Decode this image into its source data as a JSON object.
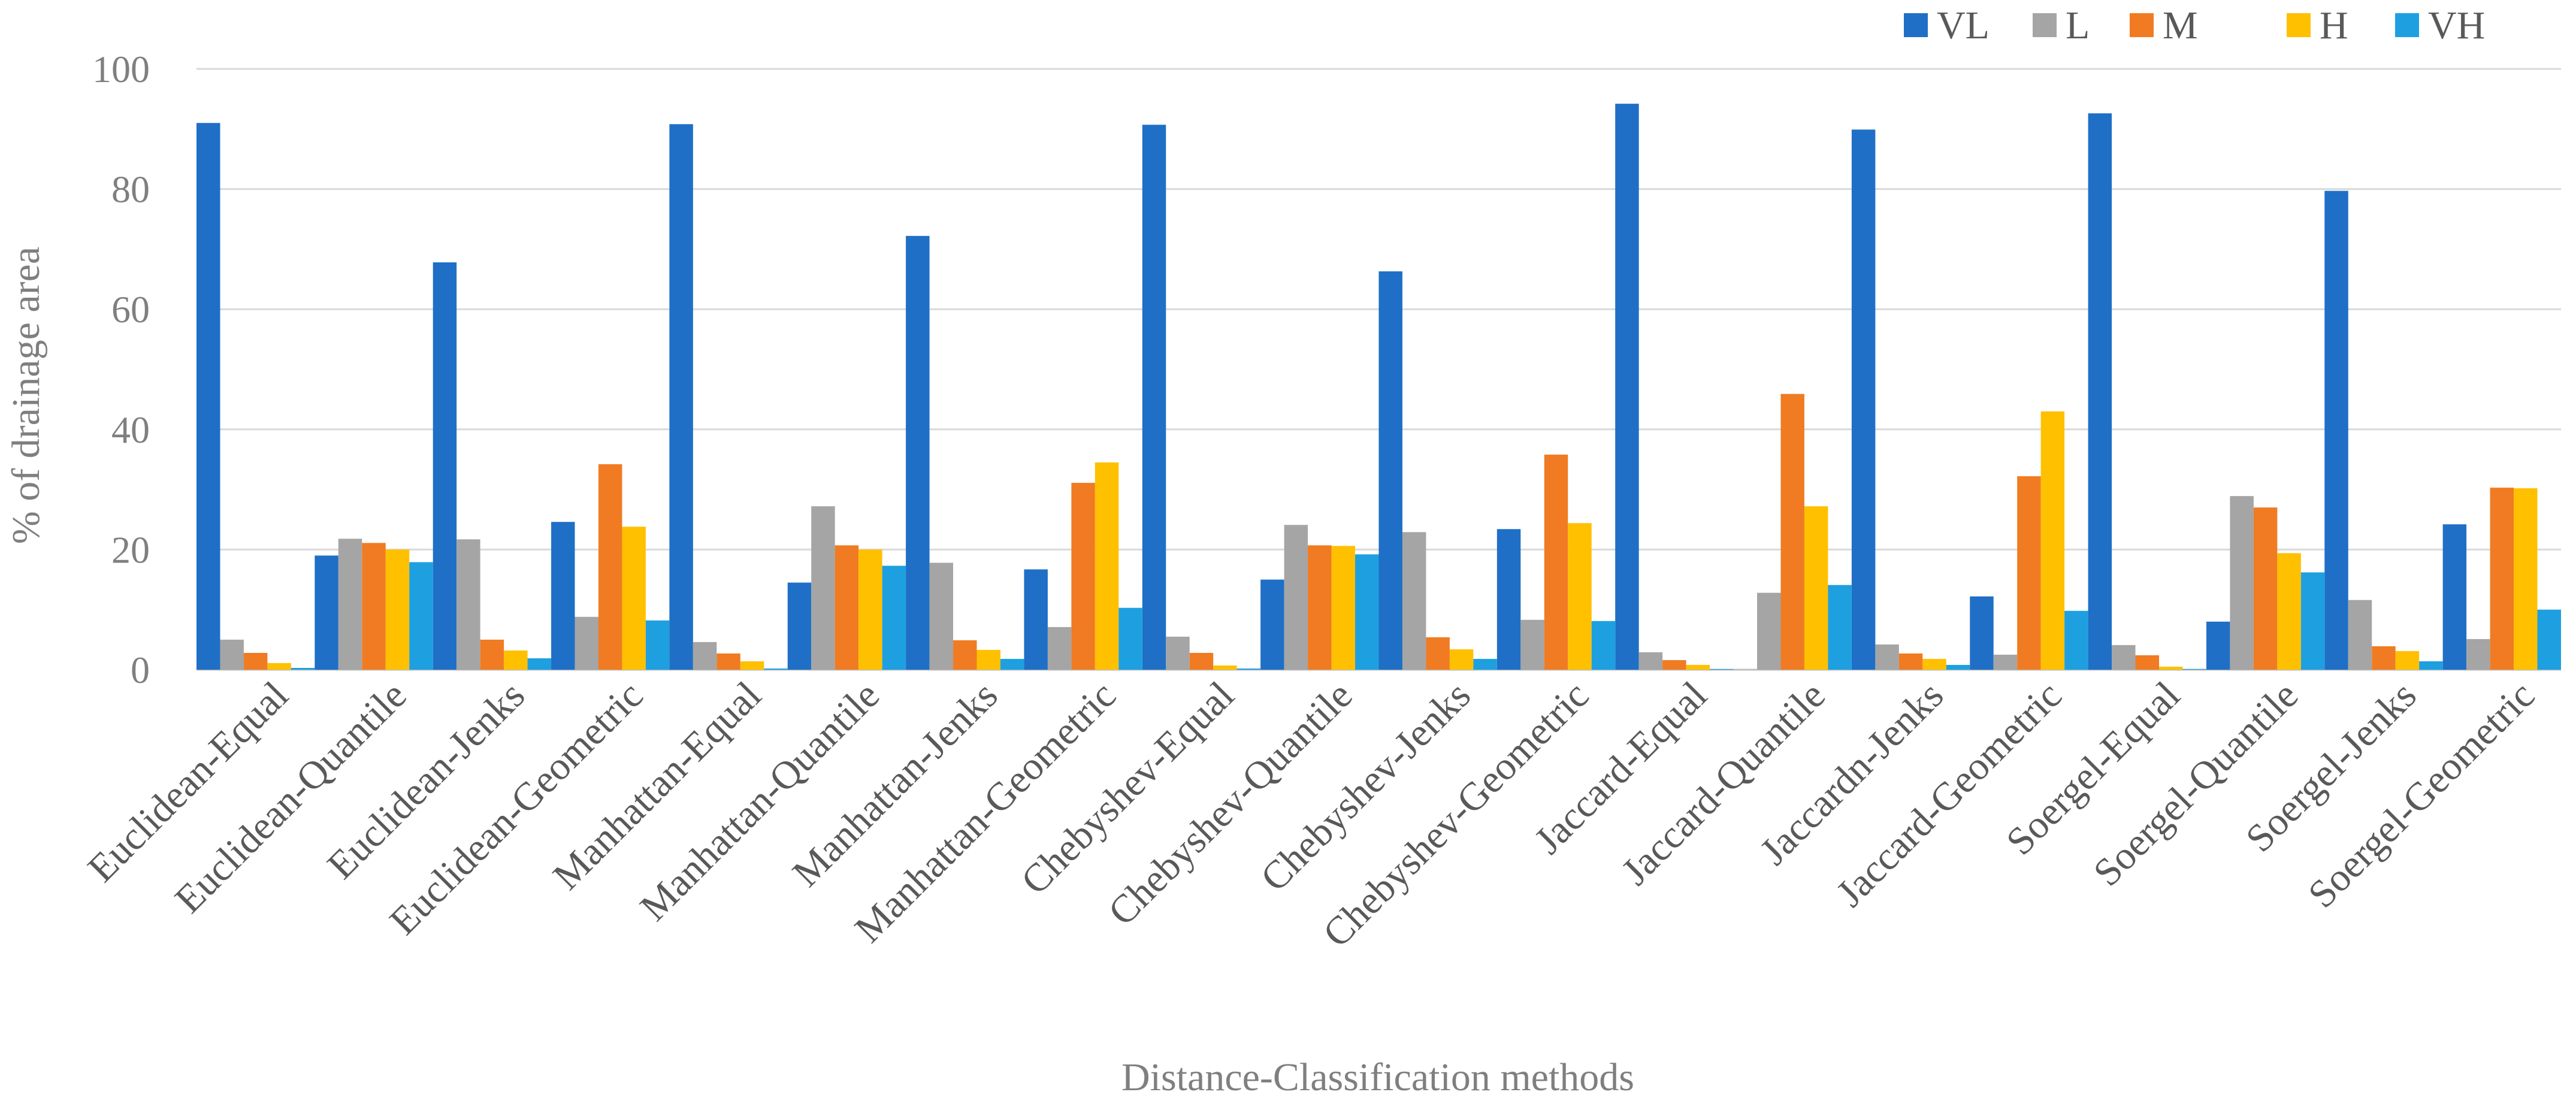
{
  "chart_data": {
    "type": "bar",
    "title": "",
    "xlabel": "Distance-Classification methods",
    "ylabel": "% of drainage area",
    "ylim": [
      0,
      100
    ],
    "yticks": [
      "0",
      "20",
      "40",
      "60",
      "80",
      "100"
    ],
    "grid": true,
    "legend_position": "top-right",
    "categories": [
      "Euclidean-Equal",
      "Euclidean-Quantile",
      "Euclidean-Jenks",
      "Euclidean-Geometric",
      "Manhattan-Equal",
      "Manhattan-Quantile",
      "Manhattan-Jenks",
      "Manhattan-Geometric",
      "Chebyshev-Equal",
      "Chebyshev-Quantile",
      "Chebyshev-Jenks",
      "Chebyshev-Geometric",
      "Jaccard-Equal",
      "Jaccard-Quantile",
      "Jaccardn-Jenks",
      "Jaccard-Geometric",
      "Soergel-Equal",
      "Soergel-Quantile",
      "Soergel-Jenks",
      "Soergel-Geometric"
    ],
    "series": [
      {
        "name": "VL",
        "color": "#1f6fc6",
        "values": [
          91,
          19,
          67.8,
          24.6,
          90.8,
          14.5,
          72.2,
          16.7,
          90.7,
          15,
          66.3,
          23.4,
          94.2,
          0,
          89.9,
          12.2,
          92.6,
          8,
          79.7,
          24.2
        ]
      },
      {
        "name": "L",
        "color": "#a5a5a5",
        "values": [
          5,
          21.8,
          21.7,
          8.8,
          4.6,
          27.2,
          17.8,
          7.1,
          5.5,
          24.1,
          22.9,
          8.3,
          2.9,
          12.8,
          4.2,
          2.5,
          4.1,
          28.9,
          11.6,
          5.1
        ]
      },
      {
        "name": "M",
        "color": "#f07b22",
        "values": [
          2.8,
          21.1,
          5,
          34.2,
          2.7,
          20.7,
          4.9,
          31.1,
          2.8,
          20.7,
          5.4,
          35.8,
          1.6,
          45.9,
          2.7,
          32.2,
          2.4,
          27,
          3.9,
          30.3
        ]
      },
      {
        "name": "H",
        "color": "#ffc000",
        "values": [
          1.1,
          20,
          3.2,
          23.8,
          1.4,
          20,
          3.3,
          34.5,
          0.7,
          20.6,
          3.4,
          24.4,
          0.8,
          27.2,
          1.8,
          43,
          0.5,
          19.4,
          3.1,
          30.2
        ]
      },
      {
        "name": "VH",
        "color": "#1ea0e0",
        "values": [
          0.3,
          17.9,
          1.9,
          8.2,
          0.2,
          17.3,
          1.8,
          10.3,
          0.2,
          19.2,
          1.8,
          8.1,
          0.1,
          14.1,
          0.8,
          9.8,
          0.1,
          16.2,
          1.4,
          10
        ]
      }
    ]
  }
}
